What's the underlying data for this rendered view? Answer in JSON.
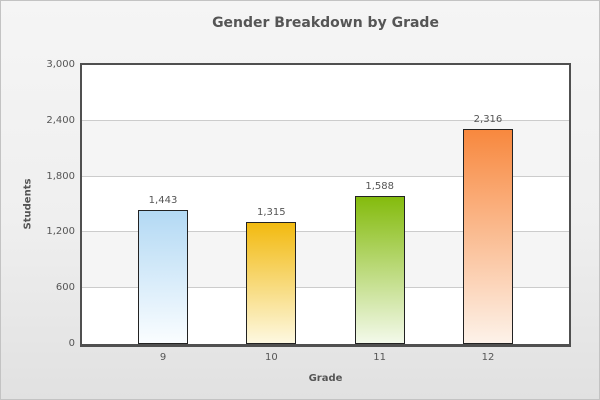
{
  "chart_data": {
    "type": "bar",
    "title": "Gender Breakdown by Grade",
    "xlabel": "Grade",
    "ylabel": "Students",
    "categories": [
      "9",
      "10",
      "11",
      "12"
    ],
    "values": [
      1443,
      1315,
      1588,
      2316
    ],
    "value_labels": [
      "1,443",
      "1,315",
      "1,588",
      "2,316"
    ],
    "ylim": [
      0,
      3000
    ],
    "yticks": [
      0,
      600,
      1200,
      1800,
      2400,
      3000
    ],
    "ytick_labels": [
      "0",
      "600",
      "1,200",
      "1,800",
      "2,400",
      "3,000"
    ],
    "grid": true,
    "legend": "none",
    "bar_gradients": [
      {
        "top": "#b3d9f4",
        "bottom": "#fafdff"
      },
      {
        "top": "#f2ba10",
        "bottom": "#fdf8e0"
      },
      {
        "top": "#84bb0d",
        "bottom": "#f3f9ea"
      },
      {
        "top": "#f8883e",
        "bottom": "#fdf2e9"
      }
    ],
    "colors": {
      "canvas_bg": "#ffffff",
      "alt_band": "#f5f5f5",
      "grid": "#cccccc",
      "canvas_border": "#505050",
      "bar_border": "#222222",
      "text": "#555555",
      "frame_border": "#c3c3c3",
      "frame_bg_top": "#f5f5f5",
      "frame_bg_bottom": "#e1e1e1"
    }
  }
}
